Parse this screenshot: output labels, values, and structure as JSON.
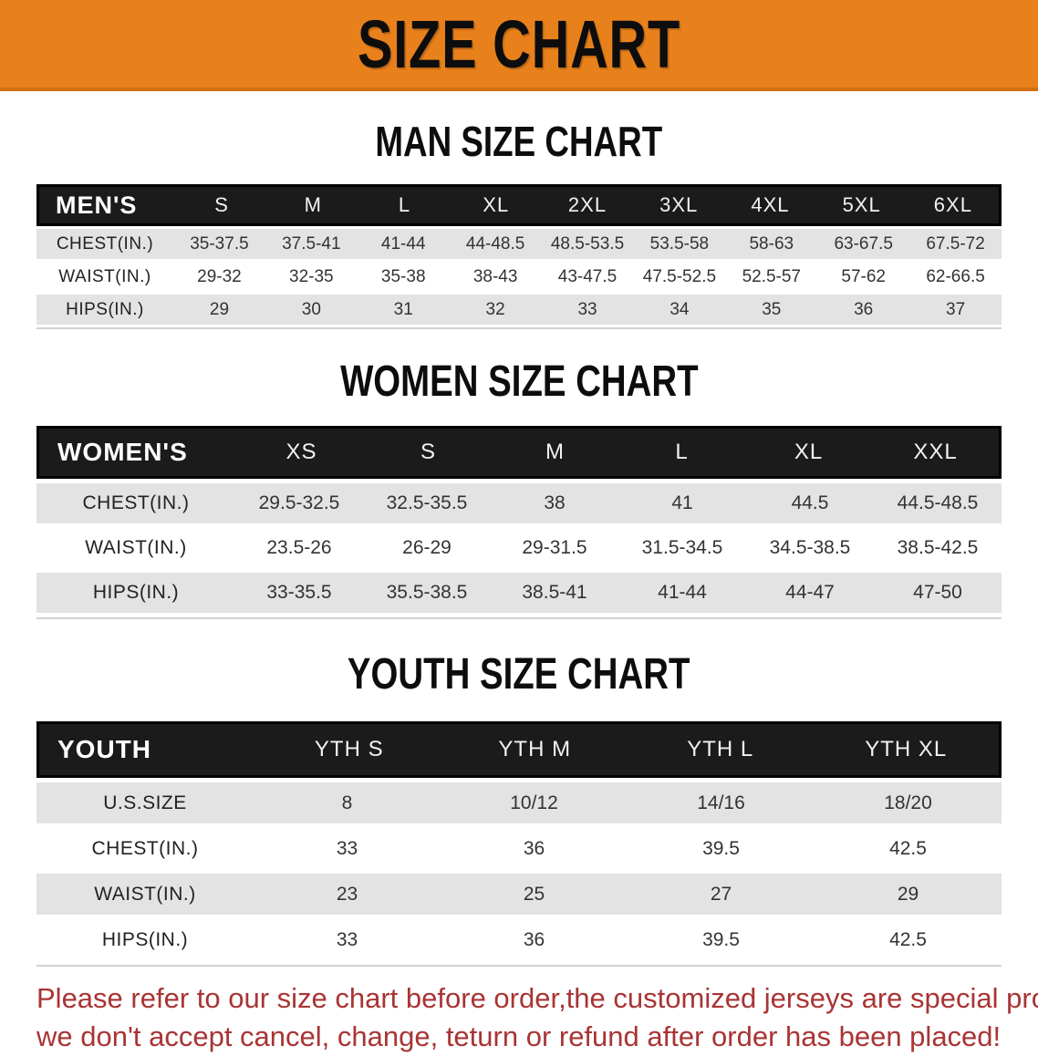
{
  "banner": {
    "title": "SIZE CHART",
    "bg_color": "#E8811C",
    "text_color": "#0D0D0D"
  },
  "sections": [
    {
      "heading": "MAN SIZE CHART",
      "table": {
        "header_label": "MEN'S",
        "columns": [
          "S",
          "M",
          "L",
          "XL",
          "2XL",
          "3XL",
          "4XL",
          "5XL",
          "6XL"
        ],
        "rows": [
          {
            "label": "CHEST(IN.)",
            "values": [
              "35-37.5",
              "37.5-41",
              "41-44",
              "44-48.5",
              "48.5-53.5",
              "53.5-58",
              "58-63",
              "63-67.5",
              "67.5-72"
            ]
          },
          {
            "label": "WAIST(IN.)",
            "values": [
              "29-32",
              "32-35",
              "35-38",
              "38-43",
              "43-47.5",
              "47.5-52.5",
              "52.5-57",
              "57-62",
              "62-66.5"
            ]
          },
          {
            "label": "HIPS(IN.)",
            "values": [
              "29",
              "30",
              "31",
              "32",
              "33",
              "34",
              "35",
              "36",
              "37"
            ]
          }
        ]
      }
    },
    {
      "heading": "WOMEN SIZE CHART",
      "table": {
        "header_label": "WOMEN'S",
        "columns": [
          "XS",
          "S",
          "M",
          "L",
          "XL",
          "XXL"
        ],
        "rows": [
          {
            "label": "CHEST(IN.)",
            "values": [
              "29.5-32.5",
              "32.5-35.5",
              "38",
              "41",
              "44.5",
              "44.5-48.5"
            ]
          },
          {
            "label": "WAIST(IN.)",
            "values": [
              "23.5-26",
              "26-29",
              "29-31.5",
              "31.5-34.5",
              "34.5-38.5",
              "38.5-42.5"
            ]
          },
          {
            "label": "HIPS(IN.)",
            "values": [
              "33-35.5",
              "35.5-38.5",
              "38.5-41",
              "41-44",
              "44-47",
              "47-50"
            ]
          }
        ]
      }
    },
    {
      "heading": "YOUTH SIZE CHART",
      "table": {
        "header_label": "YOUTH",
        "columns": [
          "YTH S",
          "YTH M",
          "YTH L",
          "YTH XL"
        ],
        "rows": [
          {
            "label": "U.S.SIZE",
            "values": [
              "8",
              "10/12",
              "14/16",
              "18/20"
            ]
          },
          {
            "label": "CHEST(IN.)",
            "values": [
              "33",
              "36",
              "39.5",
              "42.5"
            ]
          },
          {
            "label": "WAIST(IN.)",
            "values": [
              "23",
              "25",
              "27",
              "29"
            ]
          },
          {
            "label": "HIPS(IN.)",
            "values": [
              "33",
              "36",
              "39.5",
              "42.5"
            ]
          }
        ]
      }
    }
  ],
  "disclaimer": {
    "line1": "Please refer to our size chart before order,the customized jerseys are special products,",
    "line2": "we don't accept cancel, change, teturn or refund after order has been placed!",
    "color": "#A93434"
  },
  "colors": {
    "banner_bg": "#E8811C",
    "table_header_bg": "#1B1B1B",
    "row_shade": "#E3E3E3",
    "disclaimer_red": "#A93434"
  }
}
